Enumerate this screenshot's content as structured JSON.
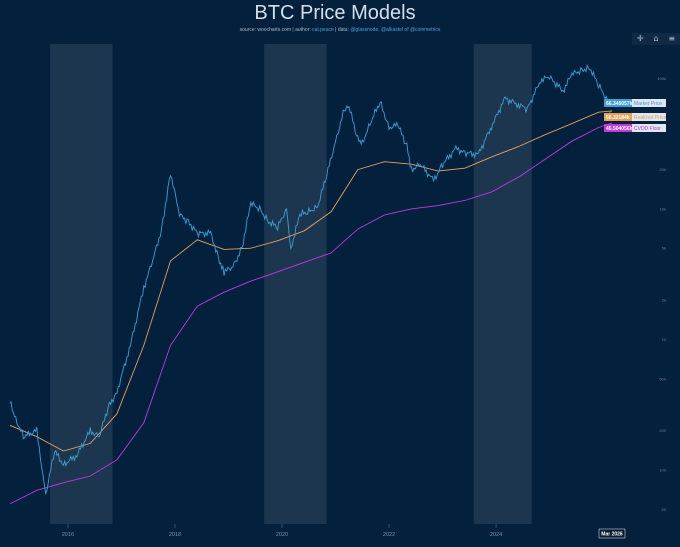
{
  "header": {
    "title": "BTC Price Models",
    "source_prefix": "source: woocharts.com | author: ",
    "author": "cat.peace",
    "data_prefix": " | data: ",
    "data_sources": "@glassnode, @alkastel of @coinmetrics"
  },
  "toolbar": {
    "icons": [
      "crosshair-icon",
      "home-icon",
      "menu-icon"
    ],
    "glyphs": [
      "✛",
      "⌂",
      "≡"
    ]
  },
  "chart_data": {
    "type": "line",
    "title": "BTC Price Models",
    "x_ticks": [
      "2016",
      "2018",
      "2020",
      "2022",
      "2024"
    ],
    "x_range": [
      "2014-12",
      "2026-03"
    ],
    "y_scale": "log",
    "y_ticks": [
      "100k",
      "50k",
      "20k",
      "10k",
      "5k",
      "2k",
      "1k",
      "500",
      "200",
      "100",
      "50"
    ],
    "y_range": [
      40,
      180000
    ],
    "grid": false,
    "cursor_label": "Mar 2026",
    "shaded_periods": [
      [
        "2015-09",
        "2016-11"
      ],
      [
        "2019-09",
        "2020-11"
      ],
      [
        "2023-08",
        "2024-09"
      ]
    ],
    "series": [
      {
        "name": "Market Price",
        "color": "#3d9fd6",
        "end_value": "66.345057k",
        "points": [
          [
            "2014-12",
            330
          ],
          [
            "2015-01",
            260
          ],
          [
            "2015-03",
            180
          ],
          [
            "2015-06",
            200
          ],
          [
            "2015-08",
            65
          ],
          [
            "2015-10",
            140
          ],
          [
            "2015-12",
            110
          ],
          [
            "2016-03",
            130
          ],
          [
            "2016-06",
            200
          ],
          [
            "2016-08",
            180
          ],
          [
            "2016-10",
            300
          ],
          [
            "2016-12",
            400
          ],
          [
            "2017-03",
            900
          ],
          [
            "2017-06",
            2500
          ],
          [
            "2017-08",
            4000
          ],
          [
            "2017-10",
            7000
          ],
          [
            "2017-12",
            19000
          ],
          [
            "2018-02",
            9000
          ],
          [
            "2018-04",
            8000
          ],
          [
            "2018-06",
            6500
          ],
          [
            "2018-09",
            6500
          ],
          [
            "2018-11",
            4000
          ],
          [
            "2018-12",
            3300
          ],
          [
            "2019-02",
            3600
          ],
          [
            "2019-04",
            5000
          ],
          [
            "2019-06",
            11000
          ],
          [
            "2019-08",
            10000
          ],
          [
            "2019-10",
            8000
          ],
          [
            "2019-12",
            7200
          ],
          [
            "2020-02",
            10000
          ],
          [
            "2020-03",
            5000
          ],
          [
            "2020-05",
            9000
          ],
          [
            "2020-07",
            9500
          ],
          [
            "2020-09",
            10500
          ],
          [
            "2020-11",
            18000
          ],
          [
            "2021-01",
            33000
          ],
          [
            "2021-03",
            58000
          ],
          [
            "2021-04",
            61000
          ],
          [
            "2021-06",
            34000
          ],
          [
            "2021-07",
            32000
          ],
          [
            "2021-09",
            47000
          ],
          [
            "2021-11",
            66000
          ],
          [
            "2022-01",
            42000
          ],
          [
            "2022-03",
            44000
          ],
          [
            "2022-05",
            30000
          ],
          [
            "2022-06",
            20000
          ],
          [
            "2022-08",
            22000
          ],
          [
            "2022-11",
            16500
          ],
          [
            "2023-01",
            22000
          ],
          [
            "2023-04",
            29000
          ],
          [
            "2023-06",
            27000
          ],
          [
            "2023-09",
            26000
          ],
          [
            "2023-12",
            43000
          ],
          [
            "2024-03",
            70000
          ],
          [
            "2024-06",
            63000
          ],
          [
            "2024-08",
            58000
          ],
          [
            "2024-11",
            97000
          ],
          [
            "2025-01",
            102000
          ],
          [
            "2025-04",
            80000
          ],
          [
            "2025-06",
            107000
          ],
          [
            "2025-08",
            115000
          ],
          [
            "2025-10",
            121000
          ],
          [
            "2025-12",
            88000
          ],
          [
            "2026-02",
            68000
          ],
          [
            "2026-03",
            66345
          ]
        ]
      },
      {
        "name": "Realized Price",
        "color": "#e6a05a",
        "end_value": "56.32184k",
        "points": [
          [
            "2014-12",
            220
          ],
          [
            "2015-06",
            180
          ],
          [
            "2015-12",
            140
          ],
          [
            "2016-06",
            160
          ],
          [
            "2016-12",
            270
          ],
          [
            "2017-06",
            900
          ],
          [
            "2017-12",
            4000
          ],
          [
            "2018-06",
            5800
          ],
          [
            "2018-12",
            4900
          ],
          [
            "2019-06",
            5000
          ],
          [
            "2019-12",
            5700
          ],
          [
            "2020-06",
            6800
          ],
          [
            "2020-12",
            9500
          ],
          [
            "2021-06",
            20000
          ],
          [
            "2021-12",
            23000
          ],
          [
            "2022-06",
            22000
          ],
          [
            "2022-12",
            19500
          ],
          [
            "2023-06",
            20500
          ],
          [
            "2023-12",
            25000
          ],
          [
            "2024-06",
            30000
          ],
          [
            "2024-12",
            37000
          ],
          [
            "2025-06",
            45000
          ],
          [
            "2025-12",
            55000
          ],
          [
            "2026-03",
            56322
          ]
        ]
      },
      {
        "name": "CVDD Floor",
        "color": "#c03ae0",
        "end_value": "45.504056k",
        "points": [
          [
            "2014-12",
            55
          ],
          [
            "2015-06",
            70
          ],
          [
            "2015-12",
            80
          ],
          [
            "2016-06",
            90
          ],
          [
            "2016-12",
            120
          ],
          [
            "2017-06",
            230
          ],
          [
            "2017-12",
            900
          ],
          [
            "2018-06",
            1800
          ],
          [
            "2018-12",
            2300
          ],
          [
            "2019-06",
            2800
          ],
          [
            "2019-12",
            3300
          ],
          [
            "2020-06",
            3900
          ],
          [
            "2020-12",
            4600
          ],
          [
            "2021-06",
            7000
          ],
          [
            "2021-12",
            9000
          ],
          [
            "2022-06",
            10000
          ],
          [
            "2022-12",
            10600
          ],
          [
            "2023-06",
            11600
          ],
          [
            "2023-12",
            13500
          ],
          [
            "2024-06",
            17500
          ],
          [
            "2024-12",
            24000
          ],
          [
            "2025-06",
            33000
          ],
          [
            "2025-12",
            42000
          ],
          [
            "2026-03",
            45504
          ]
        ]
      }
    ]
  }
}
